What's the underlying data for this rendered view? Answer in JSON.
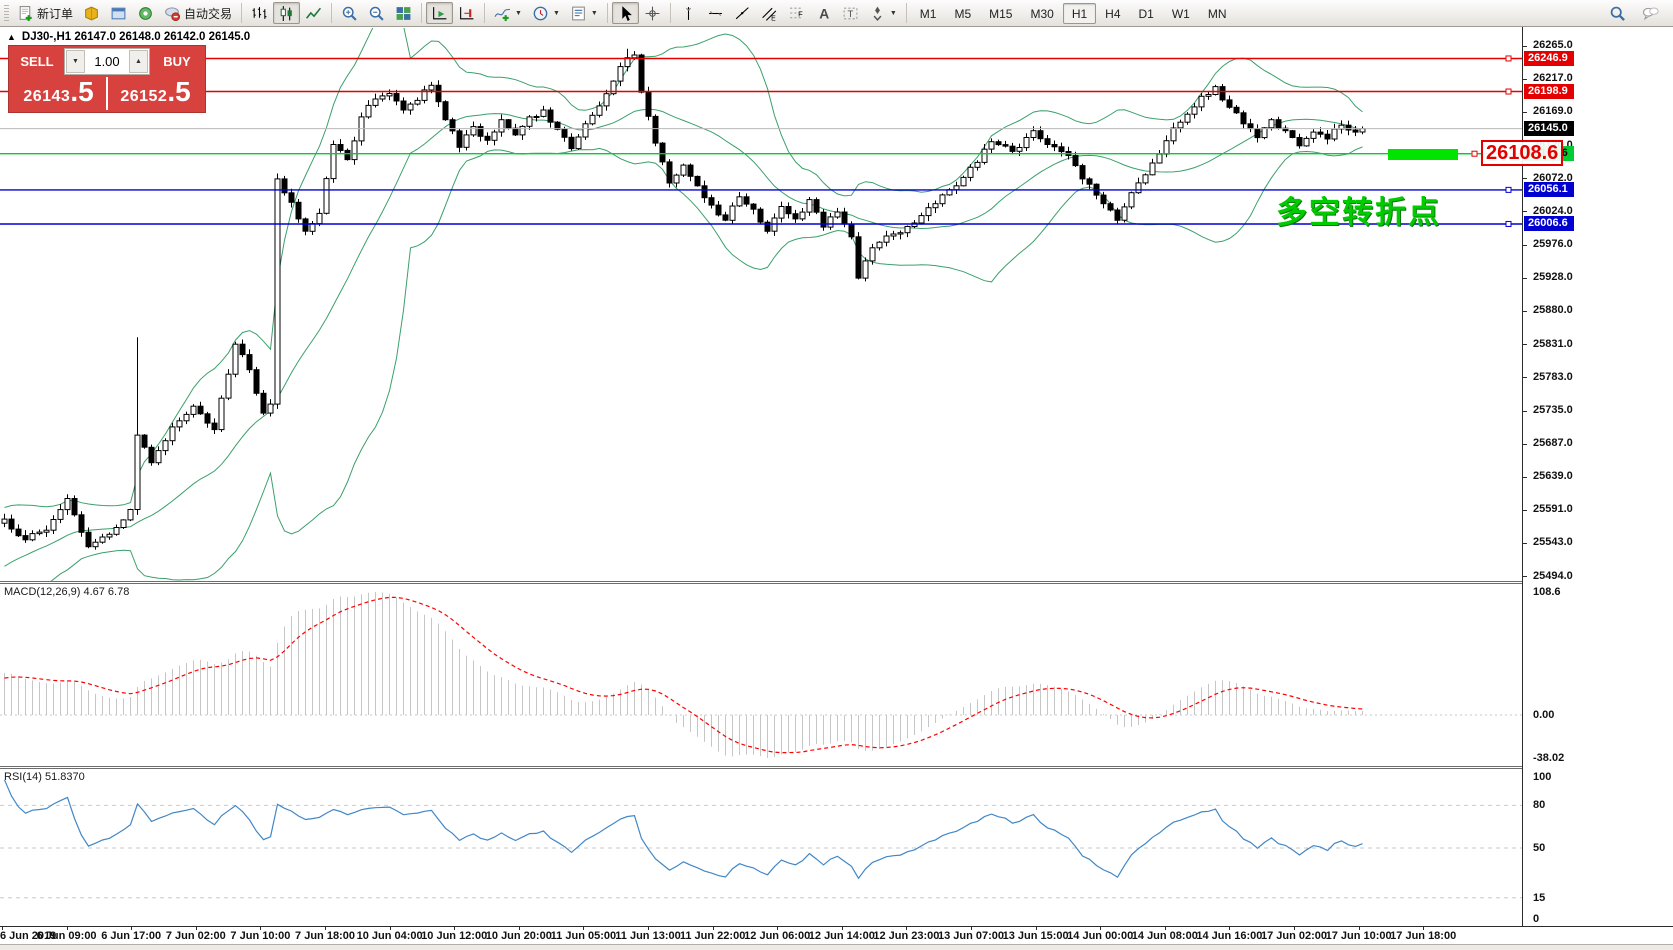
{
  "toolbar": {
    "groups": [
      {
        "buttons": [
          {
            "name": "new-order-button",
            "icon": "new-order",
            "label": "新订单"
          },
          {
            "name": "market-watch-button",
            "icon": "market-watch"
          },
          {
            "name": "profiles-button",
            "icon": "profile"
          },
          {
            "name": "signals-button",
            "icon": "signal"
          },
          {
            "name": "auto-trading-button",
            "icon": "autotrade",
            "label": "自动交易"
          }
        ]
      },
      {
        "buttons": [
          {
            "name": "bar-chart-button",
            "icon": "bars"
          },
          {
            "name": "candlestick-chart-button",
            "icon": "candles",
            "active": true
          },
          {
            "name": "line-chart-button",
            "icon": "linechart"
          }
        ]
      },
      {
        "buttons": [
          {
            "name": "zoom-in-button",
            "icon": "zoom-in"
          },
          {
            "name": "zoom-out-button",
            "icon": "zoom-out"
          },
          {
            "name": "tile-windows-button",
            "icon": "tiles"
          }
        ]
      },
      {
        "buttons": [
          {
            "name": "auto-scroll-button",
            "icon": "autoscroll",
            "active": true
          },
          {
            "name": "chart-shift-button",
            "icon": "shift-end"
          }
        ]
      },
      {
        "buttons": [
          {
            "name": "indicators-button",
            "icon": "indicators",
            "dropdown": true
          },
          {
            "name": "periods-button",
            "icon": "clock",
            "dropdown": true
          },
          {
            "name": "templates-button",
            "icon": "template",
            "dropdown": true
          }
        ]
      },
      {
        "buttons": [
          {
            "name": "cursor-button",
            "icon": "cursor",
            "active": true
          },
          {
            "name": "crosshair-button",
            "icon": "crosshair"
          }
        ]
      },
      {
        "buttons": [
          {
            "name": "vertical-line-button",
            "icon": "vline"
          },
          {
            "name": "horizontal-line-button",
            "icon": "hline"
          },
          {
            "name": "trendline-button",
            "icon": "trendline"
          },
          {
            "name": "equidistant-channel-button",
            "icon": "channel"
          },
          {
            "name": "fibonacci-button",
            "icon": "fibo"
          },
          {
            "name": "text-button",
            "icon": "text"
          },
          {
            "name": "text-label-button",
            "icon": "label"
          },
          {
            "name": "arrows-button",
            "icon": "arrows",
            "dropdown": true
          }
        ]
      }
    ],
    "timeframes": [
      "M1",
      "M5",
      "M15",
      "M30",
      "H1",
      "H4",
      "D1",
      "W1",
      "MN"
    ],
    "active_timeframe": "H1",
    "right_icons": [
      {
        "name": "search-icon",
        "icon": "search"
      },
      {
        "name": "chat-icon",
        "icon": "chat"
      }
    ]
  },
  "quote_panel": {
    "sell_label": "SELL",
    "buy_label": "BUY",
    "volume": "1.00",
    "sell_price": "26143",
    "sell_price_frac": ".5",
    "buy_price": "26152",
    "buy_price_frac": ".5"
  },
  "chart": {
    "collapse_arrow": "▲",
    "title": "DJ30-,H1 26147.0 26148.0 26142.0 26145.0",
    "symbol": "DJ30-",
    "timeframe": "H1",
    "colors": {
      "bull": "#ffffff",
      "bear": "#000000",
      "outline": "#000000",
      "bollinger": "#3aa06a",
      "bid_line": "#b8b8b8",
      "macd_hist": "#c6c6c6",
      "macd_signal": "#ff0000",
      "rsi_line": "#4187c7",
      "level_dash": "#c9c9c9"
    }
  },
  "annotation": {
    "text": "多空转折点",
    "color": "#00ca00",
    "tag_text": "26108.6",
    "tag_color": "#e40000",
    "highlight_color": "#00e400"
  },
  "indicators": {
    "macd": {
      "label": "MACD(12,26,9) 4.67 6.78",
      "fast": 12,
      "slow": 26,
      "signal": 9,
      "value": "4.67",
      "signal_value": "6.78",
      "axis_max": "108.6",
      "axis_zero": "0.00",
      "axis_min": "-38.02"
    },
    "rsi": {
      "label": "RSI(14) 51.8370",
      "period": 14,
      "value": "51.8370",
      "axis": [
        "100",
        "80",
        "50",
        "15",
        "0"
      ],
      "levels": [
        80,
        50,
        15
      ]
    }
  },
  "price_axis": {
    "ticks": [
      "26265.0",
      "26217.0",
      "26169.0",
      "26120.0",
      "26072.0",
      "26024.0",
      "25976.0",
      "25928.0",
      "25880.0",
      "25831.0",
      "25783.0",
      "25735.0",
      "25687.0",
      "25639.0",
      "25591.0",
      "25543.0",
      "25494.0"
    ],
    "tick_values": [
      26265,
      26217,
      26169,
      26120,
      26072,
      26024,
      25976,
      25928,
      25880,
      25831,
      25783,
      25735,
      25687,
      25639,
      25591,
      25543,
      25494
    ],
    "tags": [
      {
        "text": "26246.9",
        "value": 26246.9,
        "bg": "#e40000",
        "fg": "#ffffff"
      },
      {
        "text": "26198.9",
        "value": 26198.9,
        "bg": "#e40000",
        "fg": "#ffffff"
      },
      {
        "text": "26145.0",
        "value": 26145.0,
        "bg": "#000000",
        "fg": "#ffffff"
      },
      {
        "text": "26108.6",
        "value": 26108.6,
        "bg": "#00cc33",
        "fg": "#000000"
      },
      {
        "text": "26056.1",
        "value": 26056.1,
        "bg": "#0000d0",
        "fg": "#ffffff"
      },
      {
        "text": "26006.6",
        "value": 26006.6,
        "bg": "#0000d0",
        "fg": "#ffffff"
      }
    ]
  },
  "time_axis": {
    "labels": [
      "6 Jun 2019",
      "6 Jun 09:00",
      "6 Jun 17:00",
      "7 Jun 02:00",
      "7 Jun 10:00",
      "7 Jun 18:00",
      "10 Jun 04:00",
      "10 Jun 12:00",
      "10 Jun 20:00",
      "11 Jun 05:00",
      "11 Jun 13:00",
      "11 Jun 22:00",
      "12 Jun 06:00",
      "12 Jun 14:00",
      "12 Jun 23:00",
      "13 Jun 07:00",
      "13 Jun 15:00",
      "14 Jun 00:00",
      "14 Jun 08:00",
      "14 Jun 16:00",
      "17 Jun 02:00",
      "17 Jun 10:00",
      "17 Jun 18:00"
    ]
  },
  "chart_data": {
    "type": "candlestick",
    "symbol": "DJ30-",
    "timeframe": "H1",
    "bars": 195,
    "price_max": 26265,
    "price_min": 25494,
    "ohlc_display": {
      "open": 26147.0,
      "high": 26148.0,
      "low": 26142.0,
      "close": 26145.0
    },
    "bid": 26145.0,
    "hlines": [
      {
        "value": 26246.9,
        "color": "#e40000"
      },
      {
        "value": 26198.9,
        "color": "#e40000"
      },
      {
        "value": 26108.6,
        "color": "#00cc33"
      },
      {
        "value": 26056.1,
        "color": "#0000d0"
      },
      {
        "value": 26006.6,
        "color": "#0000d0"
      }
    ],
    "bollinger": {
      "period": 20,
      "deviation": 2
    },
    "anchors": [
      [
        0,
        25578
      ],
      [
        3,
        25548
      ],
      [
        6,
        25562
      ],
      [
        9,
        25608
      ],
      [
        12,
        25538
      ],
      [
        15,
        25556
      ],
      [
        18,
        25592
      ],
      [
        19,
        25700
      ],
      [
        21,
        25660
      ],
      [
        24,
        25712
      ],
      [
        27,
        25742
      ],
      [
        30,
        25708
      ],
      [
        33,
        25832
      ],
      [
        35,
        25795
      ],
      [
        37,
        25732
      ],
      [
        38,
        25745
      ],
      [
        39,
        26072
      ],
      [
        41,
        26038
      ],
      [
        43,
        25996
      ],
      [
        45,
        26022
      ],
      [
        47,
        26122
      ],
      [
        49,
        26100
      ],
      [
        51,
        26162
      ],
      [
        53,
        26188
      ],
      [
        55,
        26196
      ],
      [
        57,
        26172
      ],
      [
        59,
        26186
      ],
      [
        61,
        26208
      ],
      [
        63,
        26158
      ],
      [
        65,
        26118
      ],
      [
        67,
        26148
      ],
      [
        69,
        26128
      ],
      [
        71,
        26158
      ],
      [
        73,
        26136
      ],
      [
        75,
        26162
      ],
      [
        77,
        26172
      ],
      [
        79,
        26144
      ],
      [
        81,
        26116
      ],
      [
        83,
        26152
      ],
      [
        85,
        26178
      ],
      [
        87,
        26214
      ],
      [
        89,
        26248
      ],
      [
        90,
        26252
      ],
      [
        91,
        26198
      ],
      [
        93,
        26124
      ],
      [
        95,
        26066
      ],
      [
        97,
        26092
      ],
      [
        99,
        26062
      ],
      [
        101,
        26034
      ],
      [
        103,
        26012
      ],
      [
        105,
        26046
      ],
      [
        107,
        26028
      ],
      [
        109,
        25996
      ],
      [
        111,
        26032
      ],
      [
        113,
        26014
      ],
      [
        115,
        26042
      ],
      [
        117,
        26002
      ],
      [
        119,
        26024
      ],
      [
        121,
        25988
      ],
      [
        122,
        25928
      ],
      [
        124,
        25972
      ],
      [
        127,
        25992
      ],
      [
        130,
        26008
      ],
      [
        133,
        26036
      ],
      [
        136,
        26062
      ],
      [
        139,
        26096
      ],
      [
        141,
        26126
      ],
      [
        144,
        26112
      ],
      [
        147,
        26142
      ],
      [
        149,
        26122
      ],
      [
        152,
        26106
      ],
      [
        154,
        26072
      ],
      [
        157,
        26036
      ],
      [
        159,
        26012
      ],
      [
        161,
        26052
      ],
      [
        163,
        26078
      ],
      [
        165,
        26108
      ],
      [
        167,
        26146
      ],
      [
        169,
        26166
      ],
      [
        171,
        26192
      ],
      [
        173,
        26206
      ],
      [
        175,
        26176
      ],
      [
        177,
        26152
      ],
      [
        179,
        26132
      ],
      [
        181,
        26158
      ],
      [
        183,
        26142
      ],
      [
        185,
        26120
      ],
      [
        187,
        26140
      ],
      [
        189,
        26130
      ],
      [
        191,
        26150
      ],
      [
        193,
        26140
      ],
      [
        194,
        26145
      ]
    ],
    "wick_boosts": {
      "19": 135,
      "89": 10
    }
  }
}
